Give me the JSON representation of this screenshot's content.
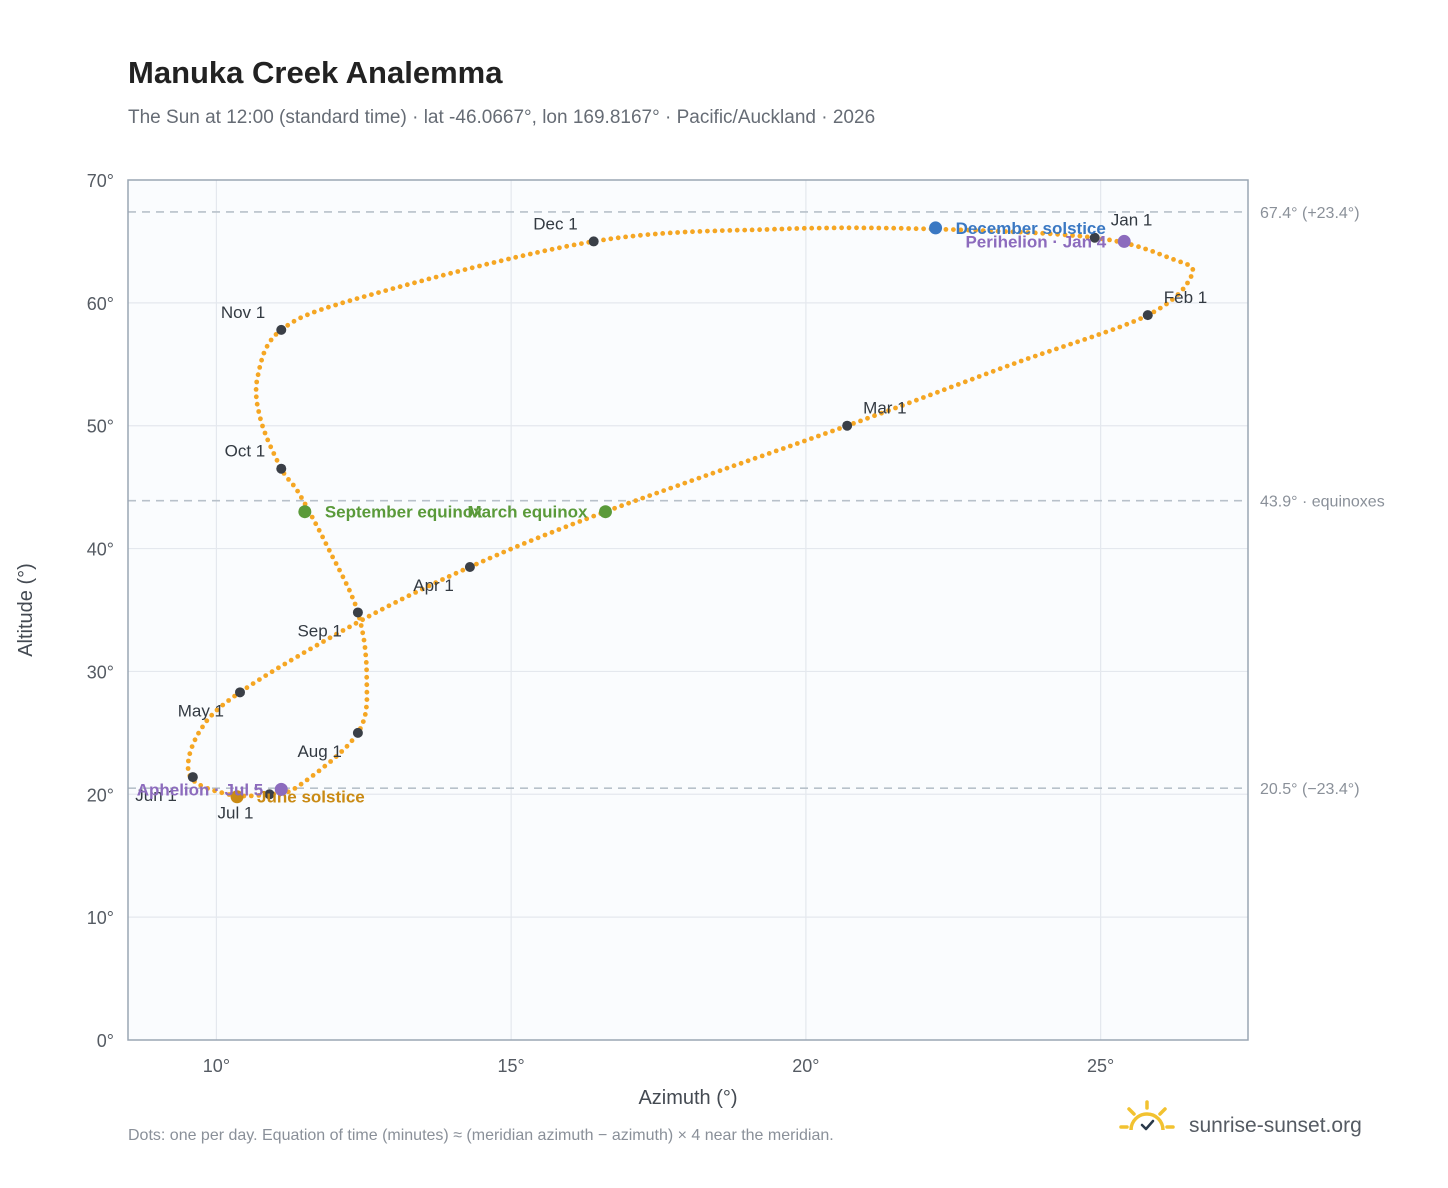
{
  "header": {
    "title": "Manuka Creek Analemma",
    "subtitle": "The Sun at 12:00 (standard time) · lat -46.0667°, lon 169.8167° · Pacific/Auckland · 2026"
  },
  "footer": {
    "note": "Dots: one per day. Equation of time (minutes) ≈ (meridian azimuth − azimuth) × 4 near the meridian.",
    "brand": "sunrise-sunset.org",
    "brand_icon": "sun-icon"
  },
  "colors": {
    "curve": "#f5a623",
    "month_marker": "#3a3f47",
    "december": "#3a78c3",
    "june": "#c98a14",
    "equinox": "#5a9a3a",
    "apsis": "#8c6bbd",
    "reference_line": "#b8c1ca",
    "plot_bg": "#fafcfe",
    "grid": "#e4e8ee",
    "frame": "#9aa6b4"
  },
  "chart_data": {
    "type": "scatter",
    "title": "Manuka Creek Analemma",
    "xlabel": "Azimuth (°)",
    "ylabel": "Altitude (°)",
    "xlim": [
      8.5,
      27.5
    ],
    "ylim": [
      0,
      70
    ],
    "x_ticks": [
      10,
      15,
      20,
      25
    ],
    "y_ticks": [
      0,
      10,
      20,
      30,
      40,
      50,
      60,
      70
    ],
    "x_tick_labels": [
      "10°",
      "15°",
      "20°",
      "25°"
    ],
    "y_tick_labels": [
      "0°",
      "10°",
      "20°",
      "30°",
      "40°",
      "50°",
      "60°",
      "70°"
    ],
    "grid": true,
    "reference_lines": [
      {
        "y": 67.4,
        "label": "67.4° (+23.4°)"
      },
      {
        "y": 43.9,
        "label": "43.9° · equinoxes"
      },
      {
        "y": 20.5,
        "label": "20.5° (−23.4°)"
      }
    ],
    "curve_anchors": [
      {
        "x": 24.9,
        "y": 65.3
      },
      {
        "x": 26.2,
        "y": 63.6
      },
      {
        "x": 26.55,
        "y": 62.3
      },
      {
        "x": 25.8,
        "y": 59.0
      },
      {
        "x": 23.5,
        "y": 55.0
      },
      {
        "x": 20.7,
        "y": 50.0
      },
      {
        "x": 16.6,
        "y": 43.0
      },
      {
        "x": 14.3,
        "y": 38.5
      },
      {
        "x": 12.4,
        "y": 34.0
      },
      {
        "x": 10.4,
        "y": 28.3
      },
      {
        "x": 9.7,
        "y": 25.0
      },
      {
        "x": 9.55,
        "y": 21.5
      },
      {
        "x": 10.2,
        "y": 20.0
      },
      {
        "x": 10.9,
        "y": 20.0
      },
      {
        "x": 11.4,
        "y": 20.7
      },
      {
        "x": 12.4,
        "y": 25.0
      },
      {
        "x": 12.55,
        "y": 29.5
      },
      {
        "x": 12.4,
        "y": 34.8
      },
      {
        "x": 11.9,
        "y": 40.0
      },
      {
        "x": 11.4,
        "y": 44.5
      },
      {
        "x": 11.1,
        "y": 46.5
      },
      {
        "x": 10.75,
        "y": 50.5
      },
      {
        "x": 10.7,
        "y": 54.0
      },
      {
        "x": 11.1,
        "y": 57.8
      },
      {
        "x": 12.5,
        "y": 60.5
      },
      {
        "x": 16.4,
        "y": 65.0
      },
      {
        "x": 19.5,
        "y": 66.0
      },
      {
        "x": 22.2,
        "y": 66.0
      },
      {
        "x": 24.9,
        "y": 65.3
      }
    ],
    "month_markers": [
      {
        "label": "Jan 1",
        "x": 24.9,
        "y": 65.3,
        "label_pos": "above-right"
      },
      {
        "label": "Feb 1",
        "x": 25.8,
        "y": 59.0,
        "label_pos": "above-right"
      },
      {
        "label": "Mar 1",
        "x": 20.7,
        "y": 50.0,
        "label_pos": "above-right"
      },
      {
        "label": "Apr 1",
        "x": 14.3,
        "y": 38.5,
        "label_pos": "below-left"
      },
      {
        "label": "May 1",
        "x": 10.4,
        "y": 28.3,
        "label_pos": "below-left"
      },
      {
        "label": "Jun 1",
        "x": 9.6,
        "y": 21.4,
        "label_pos": "below-left"
      },
      {
        "label": "Jul 1",
        "x": 10.9,
        "y": 20.0,
        "label_pos": "below-left"
      },
      {
        "label": "Aug 1",
        "x": 12.4,
        "y": 25.0,
        "label_pos": "below-left"
      },
      {
        "label": "Sep 1",
        "x": 12.4,
        "y": 34.8,
        "label_pos": "below-left"
      },
      {
        "label": "Oct 1",
        "x": 11.1,
        "y": 46.5,
        "label_pos": "above-left"
      },
      {
        "label": "Nov 1",
        "x": 11.1,
        "y": 57.8,
        "label_pos": "above-left"
      },
      {
        "label": "Dec 1",
        "x": 16.4,
        "y": 65.0,
        "label_pos": "above-left"
      }
    ],
    "events": [
      {
        "label": "December solstice",
        "x": 22.2,
        "y": 66.1,
        "color": "#3a78c3"
      },
      {
        "label": "June solstice",
        "x": 10.35,
        "y": 19.8,
        "color": "#c98a14"
      },
      {
        "label": "March equinox",
        "x": 16.6,
        "y": 43.0,
        "color": "#5a9a3a",
        "label_side": "left"
      },
      {
        "label": "September equinox",
        "x": 11.5,
        "y": 43.0,
        "color": "#5a9a3a"
      },
      {
        "label": "Perihelion · Jan 4",
        "x": 25.4,
        "y": 65.0,
        "color": "#8c6bbd",
        "label_side": "left"
      },
      {
        "label": "Aphelion · Jul 5",
        "x": 11.1,
        "y": 20.4,
        "color": "#8c6bbd",
        "label_side": "left"
      }
    ]
  }
}
